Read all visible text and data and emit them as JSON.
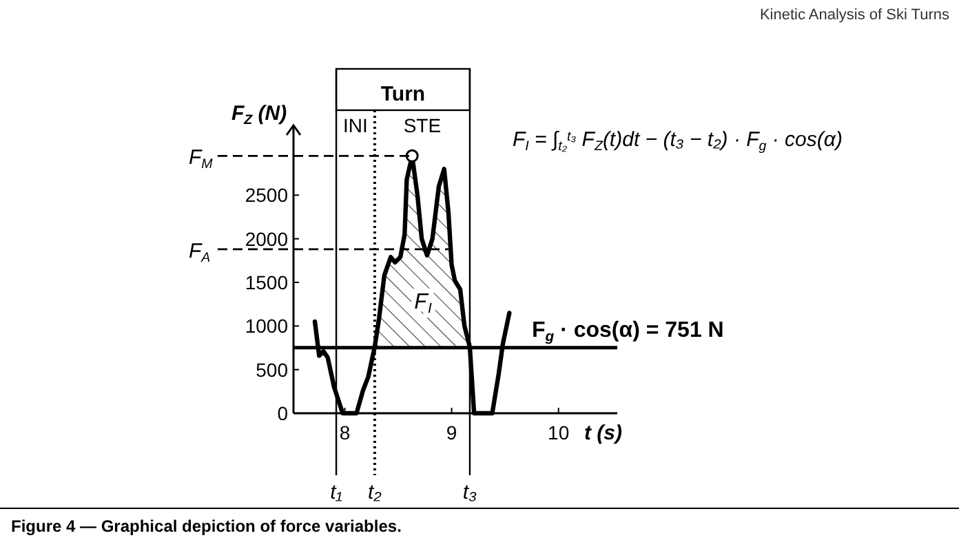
{
  "chart_data": {
    "type": "line",
    "xlabel": "t (s)",
    "ylabel": "F$_{Z}$ (N)",
    "xlim": [
      7.52,
      10.55
    ],
    "xticks": [
      8,
      9,
      10
    ],
    "ylim": [
      0,
      3300
    ],
    "yticks": [
      0,
      500,
      1000,
      1500,
      2000,
      2500
    ],
    "series": [
      {
        "color": "#000000",
        "x": [
          7.72,
          7.76,
          7.8,
          7.84,
          7.9,
          7.98,
          8.11,
          8.17,
          8.22,
          8.28,
          8.32,
          8.37,
          8.43,
          8.47,
          8.52,
          8.56,
          8.58,
          8.63,
          8.68,
          8.72,
          8.77,
          8.82,
          8.88,
          8.93,
          8.97,
          9.0,
          9.03,
          9.08,
          9.12,
          9.17,
          9.21,
          9.38,
          9.44,
          9.48,
          9.54
        ],
        "values": [
          1050,
          660,
          710,
          640,
          300,
          0,
          0,
          260,
          420,
          760,
          1080,
          1580,
          1790,
          1730,
          1790,
          2050,
          2680,
          2950,
          2500,
          2000,
          1810,
          2000,
          2600,
          2800,
          2300,
          1700,
          1520,
          1420,
          1000,
          760,
          0,
          0,
          450,
          800,
          1150
        ]
      },
      {
        "type": "area",
        "color": "#000000",
        "x": [
          8.28,
          8.32,
          8.37,
          8.43,
          8.47,
          8.52,
          8.56,
          8.58,
          8.63,
          8.68,
          8.72,
          8.77,
          8.82,
          8.88,
          8.93,
          8.97,
          9.0,
          9.03,
          9.08,
          9.12,
          9.17
        ],
        "values": [
          751,
          1080,
          1580,
          1790,
          1730,
          1790,
          2050,
          2680,
          2950,
          2500,
          2000,
          1810,
          2000,
          2600,
          2800,
          2300,
          1700,
          1520,
          1420,
          1000,
          751
        ]
      },
      {
        "type": "scatter",
        "color": "#000000",
        "marker": "circle",
        "x": [
          8.63
        ],
        "values": [
          2950
        ]
      }
    ],
    "ref_lines": [
      {
        "axis": "y",
        "value": 2950,
        "label": "F$_{M}$",
        "line_style": "dashed"
      },
      {
        "axis": "y",
        "value": 1880,
        "label": "F$_{A}$",
        "line_style": "dashed"
      },
      {
        "axis": "y",
        "value": 751,
        "label": "F$_{g}$ · cos(α) = 751 N",
        "line_style": "solid"
      },
      {
        "axis": "x",
        "value": 7.92,
        "label": "t₁",
        "line_style": "solid"
      },
      {
        "axis": "x",
        "value": 8.28,
        "label": "t₂",
        "line_style": "dotted"
      },
      {
        "axis": "x",
        "value": 9.17,
        "label": "t₃",
        "line_style": "solid"
      }
    ],
    "annotations": [
      "Kinetic Analysis of Ski Turns",
      "Turn",
      "INI",
      "STE",
      "F$_{I}$ = ∫$_{t₂}$$^{t₃}$ F$_{Z}$(t)dt − (t₃ − t₂) · F$_{g}$ · cos(α)",
      "F$_{I}$",
      "Figure 4 — Graphical depiction of force variables."
    ]
  }
}
